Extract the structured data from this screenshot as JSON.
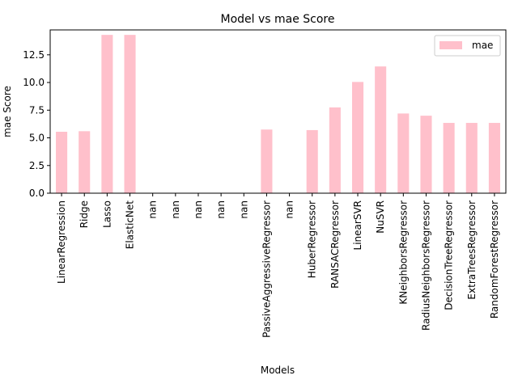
{
  "chart_data": {
    "type": "bar",
    "title": "Model vs mae Score",
    "xlabel": "Models",
    "ylabel": "mae Score",
    "categories": [
      "LinearRegression",
      "Ridge",
      "Lasso",
      "ElasticNet",
      "nan",
      "nan",
      "nan",
      "nan",
      "nan",
      "PassiveAggressiveRegressor",
      "nan",
      "HuberRegressor",
      "RANSACRegressor",
      "LinearSVR",
      "NuSVR",
      "KNeighborsRegressor",
      "RadiusNeighborsRegressor",
      "DecisionTreeRegressor",
      "ExtraTreesRegressor",
      "RandomForestRegressor"
    ],
    "series": [
      {
        "name": "mae",
        "color": "#ffc0cb",
        "values": [
          5.55,
          5.6,
          14.3,
          14.3,
          0,
          0,
          0,
          0,
          0,
          5.75,
          0,
          5.7,
          7.75,
          10.05,
          11.45,
          7.2,
          7.0,
          6.35,
          6.35,
          6.35
        ]
      }
    ],
    "yticks": [
      "0.0",
      "2.5",
      "5.0",
      "7.5",
      "10.0",
      "12.5"
    ],
    "ylim": [
      0,
      14.75
    ],
    "grid": false,
    "legend_position": "top-right"
  }
}
